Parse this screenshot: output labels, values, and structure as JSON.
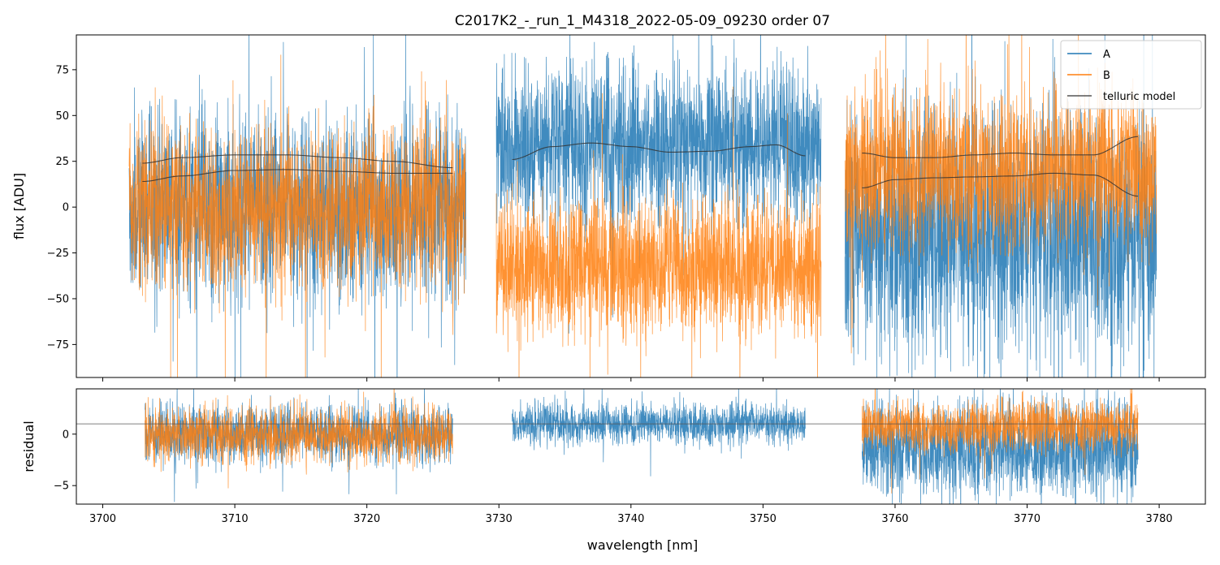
{
  "chart_data": {
    "type": "line",
    "title": "C2017K2_-_run_1_M4318_2022-05-09_09230  order 07",
    "xlabel": "wavelength [nm]",
    "xlim": [
      3698,
      3783.5
    ],
    "xticks": [
      3700,
      3710,
      3720,
      3730,
      3740,
      3750,
      3760,
      3770,
      3780
    ],
    "colors": {
      "A": "#1f77b4",
      "B": "#ff7f0e",
      "model": "#333333",
      "guide": "#555555"
    },
    "legend": {
      "placement": "top-right",
      "entries": [
        "A",
        "B",
        "telluric model"
      ]
    },
    "panels": [
      {
        "name": "flux",
        "ylabel": "flux [ADU]",
        "ylim": [
          -93,
          94
        ],
        "yticks": [
          -75,
          -50,
          -25,
          0,
          25,
          50,
          75
        ],
        "segments": [
          {
            "x_range": [
              3702,
              3727.5
            ],
            "A": {
              "center": 0,
              "amplitude": 40
            },
            "B": {
              "center": 0,
              "amplitude": 34
            },
            "model_x": [
              3703,
              3706,
              3710,
              3714,
              3718,
              3722,
              3726.5
            ],
            "model_upper": [
              24,
              27,
              28.5,
              28.5,
              27,
              25,
              21.5
            ],
            "model_lower": [
              14,
              17,
              20,
              20.5,
              19.5,
              18.5,
              18.5
            ]
          },
          {
            "x_range": [
              3729.8,
              3754.4
            ],
            "A": {
              "center": 34,
              "amplitude": 34
            },
            "B": {
              "center": -33,
              "amplitude": 30
            },
            "model_x": [
              3731,
              3734,
              3737,
              3740,
              3743,
              3746,
              3749,
              3751,
              3753.2
            ],
            "model_upper": [
              26,
              33,
              35,
              33,
              30,
              30.5,
              33,
              34,
              28
            ],
            "model_lower": null
          },
          {
            "x_range": [
              3756.2,
              3779.8
            ],
            "A": {
              "center": -15,
              "amplitude": 50
            },
            "B": {
              "center": 20,
              "amplitude": 34
            },
            "model_x": [
              3757.5,
              3760,
              3763,
              3766,
              3769,
              3772,
              3775,
              3778.4
            ],
            "model_upper": [
              29.5,
              27,
              27,
              28.5,
              29.5,
              28.5,
              28.5,
              38.5
            ],
            "model_lower": [
              10.5,
              15,
              16,
              16.5,
              17,
              18.5,
              17.5,
              6
            ]
          }
        ]
      },
      {
        "name": "residual",
        "ylabel": "residual",
        "ylim": [
          -6.8,
          4.4
        ],
        "yticks": [
          -5,
          0
        ],
        "reference_line_y": 1,
        "segments": [
          {
            "x_range": [
              3703.2,
              3726.5
            ],
            "A": {
              "center": 0,
              "amplitude": 2.2
            },
            "B": {
              "center": 0,
              "amplitude": 2.2
            }
          },
          {
            "x_range": [
              3731,
              3753.2
            ],
            "A": {
              "center": 1,
              "amplitude": 1.6
            },
            "B": null
          },
          {
            "x_range": [
              3757.5,
              3778.4
            ],
            "A": {
              "center": -1.5,
              "amplitude": 3.8
            },
            "B": {
              "center": 0.8,
              "amplitude": 1.9
            }
          }
        ]
      }
    ]
  }
}
